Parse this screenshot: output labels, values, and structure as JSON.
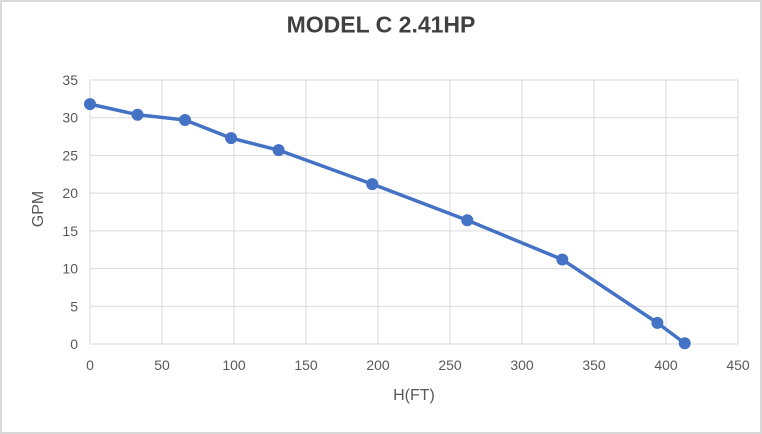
{
  "window": {
    "background_color": "#ffffff",
    "border_color": "#d9d9d9"
  },
  "chart_data": {
    "type": "line",
    "title": "MODEL C 2.41HP",
    "xlabel": "H(FT)",
    "ylabel": "GPM",
    "x": [
      0,
      33,
      66,
      98,
      131,
      196,
      262,
      328,
      394,
      413
    ],
    "y": [
      31.8,
      30.4,
      29.7,
      27.3,
      25.7,
      21.2,
      16.4,
      11.2,
      2.8,
      0.1
    ],
    "xlim": [
      0,
      450
    ],
    "ylim": [
      0,
      35
    ],
    "xticks": [
      0,
      50,
      100,
      150,
      200,
      250,
      300,
      350,
      400,
      450
    ],
    "yticks": [
      0,
      5,
      10,
      15,
      20,
      25,
      30,
      35
    ],
    "grid": true,
    "legend": "none",
    "marker": "circle",
    "line_color": "#4472C4",
    "marker_color": "#4472C4",
    "gridline_color": "#D9D9D9",
    "tick_label_color": "#595959",
    "axis_title_color": "#595959",
    "title_color": "#404040"
  }
}
